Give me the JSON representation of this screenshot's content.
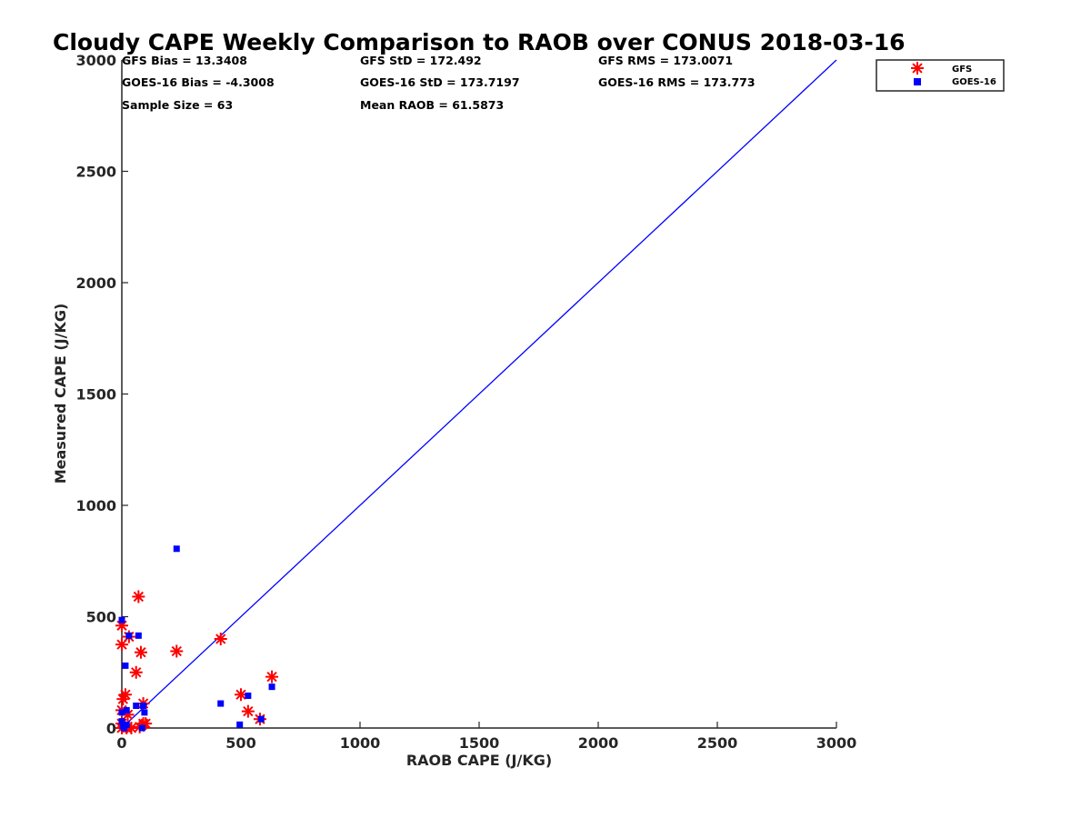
{
  "chart_data": {
    "type": "scatter",
    "title": "Cloudy CAPE Weekly Comparison to RAOB over CONUS 2018-03-16",
    "xlabel": "RAOB CAPE (J/KG)",
    "ylabel": "Measured CAPE (J/KG)",
    "xlim": [
      0,
      3000
    ],
    "ylim": [
      0,
      3000
    ],
    "xticks": [
      "0",
      "500",
      "1000",
      "1500",
      "2000",
      "2500",
      "3000"
    ],
    "yticks": [
      "0",
      "500",
      "1000",
      "1500",
      "2000",
      "2500",
      "3000"
    ],
    "grid": false,
    "legend_position": "top-right",
    "stats": [
      [
        "GFS Bias = 13.3408",
        "GFS StD = 172.492",
        "GFS RMS = 173.0071"
      ],
      [
        "GOES-16 Bias = -4.3008",
        "GOES-16 StD = 173.7197",
        "GOES-16 RMS = 173.773"
      ],
      [
        "Sample Size = 63",
        "Mean RAOB = 61.5873",
        ""
      ]
    ],
    "reference_line": {
      "x": [
        0,
        3000
      ],
      "y": [
        0,
        3000
      ],
      "color": "#0000ff"
    },
    "series": [
      {
        "name": "GFS",
        "marker": "asterisk",
        "color": "#ff0000",
        "points": [
          [
            0,
            460
          ],
          [
            0,
            375
          ],
          [
            5,
            130
          ],
          [
            0,
            80
          ],
          [
            0,
            20
          ],
          [
            0,
            0
          ],
          [
            10,
            10
          ],
          [
            15,
            150
          ],
          [
            20,
            0
          ],
          [
            30,
            410
          ],
          [
            25,
            60
          ],
          [
            40,
            0
          ],
          [
            60,
            250
          ],
          [
            70,
            590
          ],
          [
            80,
            340
          ],
          [
            90,
            110
          ],
          [
            90,
            20
          ],
          [
            75,
            5
          ],
          [
            100,
            20
          ],
          [
            230,
            345
          ],
          [
            415,
            400
          ],
          [
            500,
            150
          ],
          [
            530,
            75
          ],
          [
            580,
            40
          ],
          [
            630,
            230
          ]
        ]
      },
      {
        "name": "GOES-16",
        "marker": "square",
        "color": "#0000ff",
        "points": [
          [
            0,
            485
          ],
          [
            0,
            70
          ],
          [
            0,
            30
          ],
          [
            5,
            10
          ],
          [
            10,
            0
          ],
          [
            15,
            280
          ],
          [
            20,
            15
          ],
          [
            20,
            80
          ],
          [
            30,
            415
          ],
          [
            60,
            100
          ],
          [
            70,
            415
          ],
          [
            85,
            0
          ],
          [
            90,
            100
          ],
          [
            95,
            70
          ],
          [
            230,
            805
          ],
          [
            415,
            110
          ],
          [
            495,
            15
          ],
          [
            530,
            145
          ],
          [
            585,
            40
          ],
          [
            630,
            185
          ]
        ]
      }
    ]
  }
}
